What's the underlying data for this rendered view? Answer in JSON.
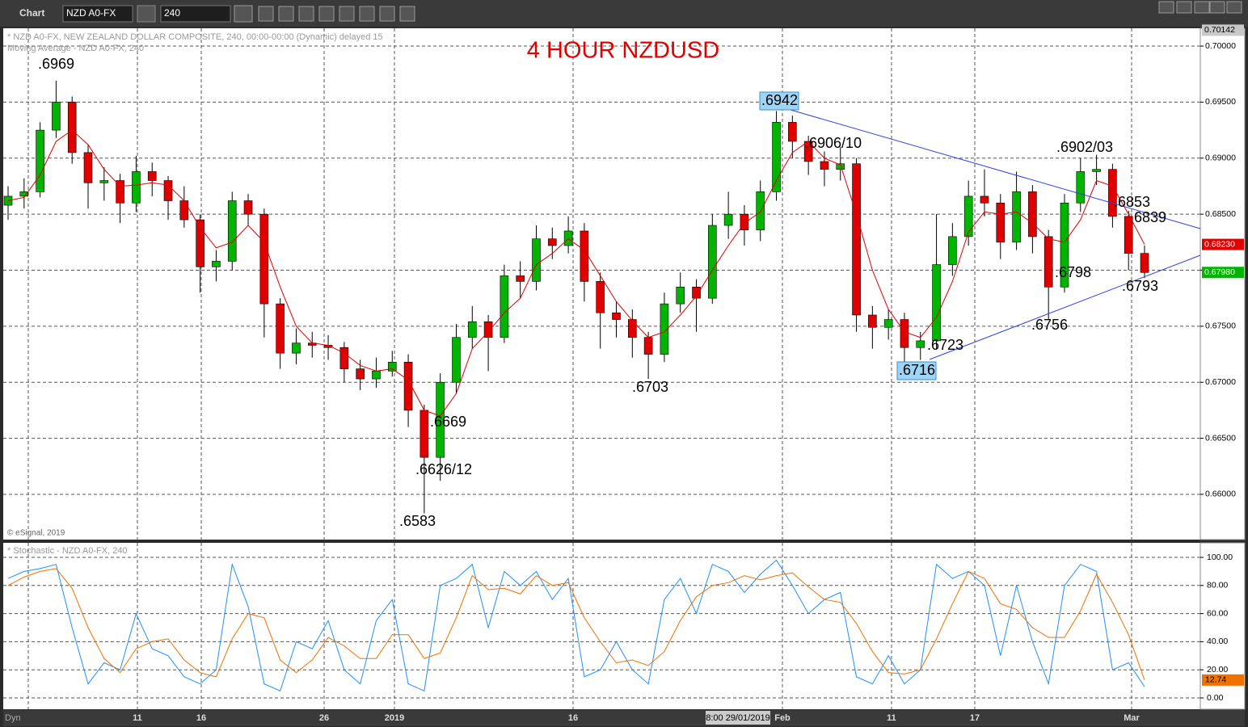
{
  "toolbar": {
    "app": "Chart",
    "symbol": "NZD A0-FX",
    "interval": "240"
  },
  "chart_data": {
    "type": "candlestick",
    "title": "4 HOUR NZDUSD",
    "info": [
      "* NZD A0-FX, NEW ZEALAND DOLLAR COMPOSITE, 240, 00:00-00:00 (Dynamic) delayed 15"
    ],
    "copyright": "© eSignal, 2019",
    "up_color": "#00b400",
    "down_color": "#e00000",
    "open": [
      0.6858,
      0.6866,
      0.687,
      0.6925,
      0.695,
      0.6905,
      0.6878,
      0.688,
      0.686,
      0.6888,
      0.688,
      0.6862,
      0.6845,
      0.6803,
      0.6808,
      0.6862,
      0.685,
      0.677,
      0.6726,
      0.6735,
      0.6733,
      0.6731,
      0.6712,
      0.6703,
      0.671,
      0.6718,
      0.6675,
      0.6633,
      0.67,
      0.674,
      0.6754,
      0.674,
      0.6795,
      0.679,
      0.6828,
      0.6822,
      0.6835,
      0.679,
      0.6762,
      0.6756,
      0.674,
      0.6725,
      0.677,
      0.6785,
      0.6775,
      0.684,
      0.685,
      0.6836,
      0.687,
      0.6932,
      0.6915,
      0.6897,
      0.689,
      0.6895,
      0.676,
      0.6749,
      0.6756,
      0.6731,
      0.6737,
      0.6805,
      0.683,
      0.6866,
      0.686,
      0.6825,
      0.687,
      0.683,
      0.6785,
      0.686,
      0.6888,
      0.689,
      0.6848,
      0.6815
    ],
    "high": [
      0.6875,
      0.6882,
      0.6932,
      0.6969,
      0.6955,
      0.6912,
      0.6892,
      0.6886,
      0.6902,
      0.6896,
      0.6884,
      0.6875,
      0.685,
      0.6818,
      0.687,
      0.6868,
      0.6855,
      0.6775,
      0.6748,
      0.6745,
      0.6742,
      0.6736,
      0.672,
      0.6722,
      0.6728,
      0.6725,
      0.668,
      0.6708,
      0.6752,
      0.6768,
      0.676,
      0.6805,
      0.6808,
      0.684,
      0.6838,
      0.6848,
      0.6842,
      0.6798,
      0.6772,
      0.6765,
      0.6745,
      0.678,
      0.6798,
      0.6792,
      0.685,
      0.687,
      0.6858,
      0.688,
      0.6942,
      0.6938,
      0.692,
      0.6906,
      0.691,
      0.69,
      0.6768,
      0.6765,
      0.6762,
      0.6745,
      0.685,
      0.6842,
      0.688,
      0.689,
      0.6868,
      0.6888,
      0.6876,
      0.6836,
      0.6868,
      0.69,
      0.6903,
      0.6895,
      0.6853,
      0.6822
    ],
    "low": [
      0.6845,
      0.6855,
      0.6865,
      0.6918,
      0.6895,
      0.6855,
      0.6862,
      0.6842,
      0.6852,
      0.6866,
      0.6845,
      0.6838,
      0.678,
      0.679,
      0.68,
      0.684,
      0.674,
      0.6712,
      0.6716,
      0.6722,
      0.672,
      0.67,
      0.6693,
      0.6695,
      0.6705,
      0.666,
      0.6583,
      0.6612,
      0.669,
      0.673,
      0.671,
      0.6735,
      0.6775,
      0.6782,
      0.681,
      0.6815,
      0.6772,
      0.673,
      0.674,
      0.6722,
      0.6703,
      0.6718,
      0.6762,
      0.6745,
      0.677,
      0.6828,
      0.6822,
      0.6826,
      0.6862,
      0.69,
      0.6885,
      0.6875,
      0.688,
      0.6745,
      0.673,
      0.6738,
      0.6716,
      0.672,
      0.673,
      0.6795,
      0.6822,
      0.6848,
      0.681,
      0.6818,
      0.6815,
      0.6756,
      0.678,
      0.6852,
      0.6876,
      0.6838,
      0.68,
      0.6793
    ],
    "close": [
      0.6866,
      0.687,
      0.6925,
      0.695,
      0.6905,
      0.6878,
      0.688,
      0.686,
      0.6888,
      0.688,
      0.6862,
      0.6845,
      0.6803,
      0.6808,
      0.6862,
      0.685,
      0.677,
      0.6726,
      0.6735,
      0.6733,
      0.6731,
      0.6712,
      0.6703,
      0.671,
      0.6718,
      0.6675,
      0.6633,
      0.67,
      0.674,
      0.6754,
      0.674,
      0.6795,
      0.679,
      0.6828,
      0.6822,
      0.6835,
      0.679,
      0.6762,
      0.6756,
      0.674,
      0.6725,
      0.677,
      0.6785,
      0.6775,
      0.684,
      0.685,
      0.6836,
      0.687,
      0.6932,
      0.6915,
      0.6897,
      0.689,
      0.6895,
      0.676,
      0.6749,
      0.6756,
      0.6731,
      0.6737,
      0.6805,
      0.683,
      0.6866,
      0.686,
      0.6825,
      0.687,
      0.683,
      0.6785,
      0.686,
      0.6888,
      0.689,
      0.6848,
      0.6815,
      0.6798
    ],
    "moving_average": {
      "name": "Moving Average - NZD A0-FX, 240",
      "color": "#e00000",
      "values": [
        0.6862,
        0.6865,
        0.6885,
        0.6915,
        0.6925,
        0.6912,
        0.689,
        0.6875,
        0.6876,
        0.6878,
        0.6876,
        0.6862,
        0.6838,
        0.682,
        0.6825,
        0.684,
        0.6825,
        0.6785,
        0.675,
        0.6735,
        0.6733,
        0.6726,
        0.6715,
        0.671,
        0.6712,
        0.6702,
        0.6675,
        0.667,
        0.669,
        0.673,
        0.6745,
        0.6762,
        0.6775,
        0.6805,
        0.6815,
        0.6828,
        0.6818,
        0.6795,
        0.6772,
        0.6755,
        0.674,
        0.6745,
        0.676,
        0.6777,
        0.68,
        0.6822,
        0.6842,
        0.6852,
        0.688,
        0.6905,
        0.6915,
        0.69,
        0.6894,
        0.685,
        0.68,
        0.6765,
        0.6745,
        0.674,
        0.6758,
        0.679,
        0.6834,
        0.6852,
        0.685,
        0.6852,
        0.6842,
        0.6828,
        0.6825,
        0.6845,
        0.688,
        0.6875,
        0.685,
        0.6823
      ]
    },
    "ylim": [
      0.65596,
      0.70159
    ],
    "yticks": [
      {
        "value": 0.66,
        "label": "0.66000"
      },
      {
        "value": 0.665,
        "label": "0.66500"
      },
      {
        "value": 0.67,
        "label": "0.67000"
      },
      {
        "value": 0.675,
        "label": "0.67500"
      },
      {
        "value": 0.68,
        "label": "0.68000"
      },
      {
        "value": 0.685,
        "label": "0.68500"
      },
      {
        "value": 0.69,
        "label": "0.69000"
      },
      {
        "value": 0.695,
        "label": "0.69500"
      },
      {
        "value": 0.7,
        "label": "0.70000"
      }
    ],
    "grid": true,
    "price_labels": [
      {
        "value": 0.70142,
        "label": "0.70142",
        "color": "#c8c8c8"
      },
      {
        "value": 0.6823,
        "label": "0.68230",
        "color": "#e00000"
      },
      {
        "value": 0.6798,
        "label": "0.67980",
        "color": "#00b400"
      }
    ],
    "x_labels": [
      "11",
      "16",
      "26",
      "2019",
      "16",
      "Feb",
      "11",
      "17",
      "Mar"
    ],
    "crosshair_label": "8:00 29/01/2019",
    "footer": "Dyn",
    "annotations": [
      ".6969",
      ".6942",
      ".6906/10",
      ".6902/03",
      ".6853",
      ".6839",
      ".6798",
      ".6793",
      ".6756",
      ".6723",
      ".6716",
      ".6703",
      ".6669",
      ".6626/12",
      ".6583"
    ],
    "stochastic": {
      "title": "* Stochastic - NZD A0-FX, 240",
      "ylim": [
        -8.05,
        109.77
      ],
      "yticks": [
        {
          "value": 0,
          "label": "0.00"
        },
        {
          "value": 20,
          "label": "20.00"
        },
        {
          "value": 40,
          "label": "40.00"
        },
        {
          "value": 60,
          "label": "60.00"
        },
        {
          "value": 80,
          "label": "80.00"
        },
        {
          "value": 100,
          "label": "100.00"
        }
      ],
      "k": {
        "color": "#1e90ff",
        "values": [
          85,
          90,
          92,
          95,
          50,
          10,
          25,
          20,
          60,
          35,
          30,
          15,
          10,
          20,
          95,
          65,
          10,
          5,
          40,
          35,
          55,
          20,
          10,
          55,
          70,
          10,
          5,
          80,
          85,
          95,
          50,
          90,
          80,
          90,
          70,
          85,
          15,
          20,
          40,
          20,
          10,
          70,
          85,
          60,
          95,
          90,
          75,
          88,
          98,
          80,
          60,
          70,
          75,
          15,
          10,
          30,
          10,
          20,
          95,
          85,
          90,
          80,
          30,
          80,
          40,
          10,
          80,
          95,
          90,
          20,
          25,
          8
        ]
      },
      "d": {
        "color": "#f07000",
        "values": [
          80,
          86,
          90,
          92,
          78,
          50,
          28,
          18,
          35,
          40,
          42,
          27,
          18,
          15,
          42,
          60,
          57,
          27,
          18,
          27,
          43,
          37,
          28,
          28,
          45,
          45,
          28,
          32,
          57,
          87,
          77,
          78,
          74,
          87,
          80,
          82,
          57,
          40,
          25,
          27,
          23,
          33,
          55,
          72,
          80,
          82,
          87,
          84,
          87,
          89,
          79,
          70,
          68,
          53,
          33,
          18,
          17,
          20,
          42,
          67,
          90,
          85,
          67,
          63,
          50,
          43,
          43,
          62,
          88,
          68,
          45,
          12.74
        ]
      },
      "last_label": {
        "value": 12.74,
        "label": "12.74"
      }
    }
  }
}
